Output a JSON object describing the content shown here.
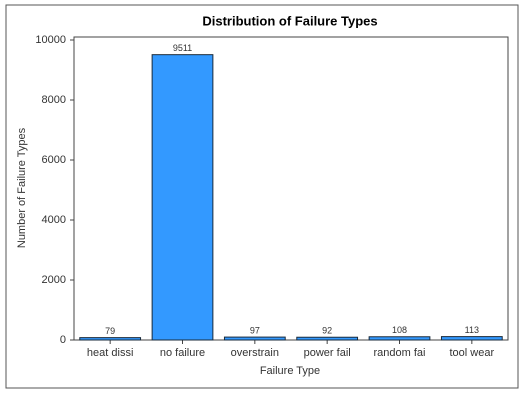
{
  "chart_data": {
    "type": "bar",
    "title": "Distribution of Failure Types",
    "x_label": "Failure Type",
    "y_label": "Number of Failure Types",
    "categories": [
      "heat dissi",
      "no failure",
      "overstrain",
      "power fail",
      "random fai",
      "tool wear"
    ],
    "values": [
      79,
      9511,
      97,
      92,
      108,
      113
    ],
    "color": "#3399ff",
    "ylim": [
      0,
      10100
    ],
    "yticks": [
      0,
      2000,
      4000,
      6000,
      8000,
      10000
    ],
    "grid": false
  }
}
